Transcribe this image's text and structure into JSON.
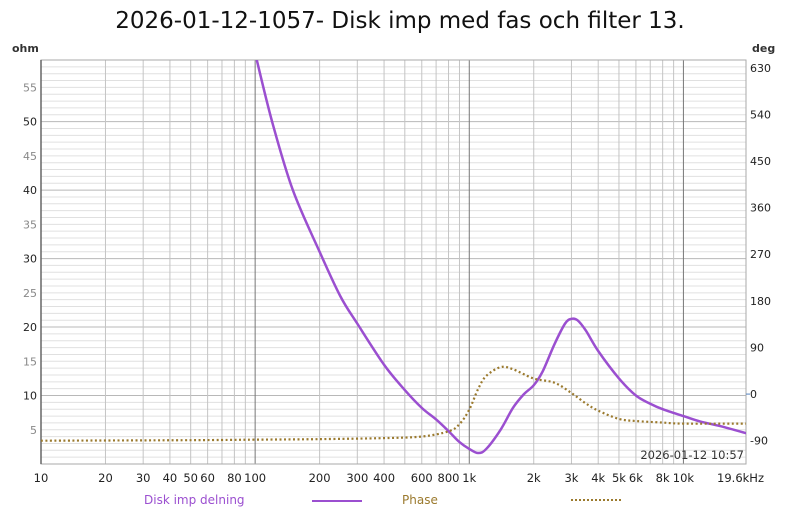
{
  "chart_data": {
    "type": "line",
    "title": "2026-01-12-1057- Disk imp med fas och filter 13.",
    "xlabel": "Hz",
    "xscale": "log",
    "xlim": [
      10,
      19600
    ],
    "x_ticks": [
      "10",
      "20",
      "30",
      "40",
      "50",
      "60",
      "80",
      "100",
      "200",
      "300",
      "400",
      "600",
      "800",
      "1k",
      "2k",
      "3k",
      "4k",
      "5k",
      "6k",
      "8k",
      "10k",
      "19.6kHz"
    ],
    "x_tick_values": [
      10,
      20,
      30,
      40,
      50,
      60,
      80,
      100,
      200,
      300,
      400,
      600,
      800,
      1000,
      2000,
      3000,
      4000,
      5000,
      6000,
      8000,
      10000,
      19600
    ],
    "y_left": {
      "label": "ohm",
      "ylim": [
        0,
        59
      ],
      "ticks": [
        "5",
        "10",
        "15",
        "20",
        "25",
        "30",
        "35",
        "40",
        "45",
        "50",
        "55"
      ],
      "tick_values": [
        5,
        10,
        15,
        20,
        25,
        30,
        35,
        40,
        45,
        50,
        55
      ]
    },
    "y_right": {
      "label": "deg",
      "ylim": [
        -135,
        645
      ],
      "ticks": [
        "630",
        "540",
        "450",
        "360",
        "270",
        "180",
        "90",
        "0",
        "-90"
      ],
      "tick_values": [
        630,
        540,
        450,
        360,
        270,
        180,
        90,
        0,
        -90
      ]
    },
    "timestamp": "2026-01-12 10:57",
    "grid": true,
    "legend_position": "bottom",
    "series": [
      {
        "name": "Disk imp delning",
        "axis": "left",
        "color": "#9b4fd0",
        "style": "solid",
        "x": [
          100,
          120,
          150,
          200,
          250,
          300,
          400,
          500,
          600,
          700,
          800,
          900,
          1000,
          1100,
          1200,
          1400,
          1600,
          1800,
          2000,
          2200,
          2500,
          2800,
          3000,
          3200,
          3500,
          4000,
          5000,
          6000,
          7000,
          8000,
          10000,
          12000,
          15000,
          19600
        ],
        "y": [
          60,
          50,
          40,
          31,
          24.5,
          20.5,
          14.5,
          10.8,
          8.2,
          6.5,
          4.8,
          3.2,
          2.2,
          1.6,
          2.2,
          5.0,
          8.2,
          10.2,
          11.5,
          13.5,
          17.5,
          20.5,
          21.2,
          21.0,
          19.5,
          16.5,
          12.5,
          10.0,
          8.8,
          8.0,
          7.0,
          6.2,
          5.5,
          4.5
        ]
      },
      {
        "name": "Phase",
        "axis": "right",
        "color": "#9b7a2e",
        "style": "dotted",
        "x": [
          10,
          50,
          100,
          200,
          400,
          600,
          800,
          900,
          1000,
          1100,
          1200,
          1400,
          1600,
          2000,
          2500,
          3000,
          3500,
          4000,
          5000,
          6000,
          8000,
          10000,
          19600
        ],
        "y": [
          -90,
          -89,
          -88,
          -87,
          -85,
          -82,
          -72,
          -58,
          -30,
          10,
          35,
          52,
          48,
          30,
          22,
          2,
          -18,
          -32,
          -48,
          -52,
          -55,
          -57,
          -57
        ]
      }
    ]
  },
  "legend": {
    "items": [
      {
        "label": "Disk imp delning",
        "color": "#9b4fd0",
        "style": "solid"
      },
      {
        "label": "Phase",
        "color": "#9b7a2e",
        "style": "dotted"
      }
    ]
  }
}
